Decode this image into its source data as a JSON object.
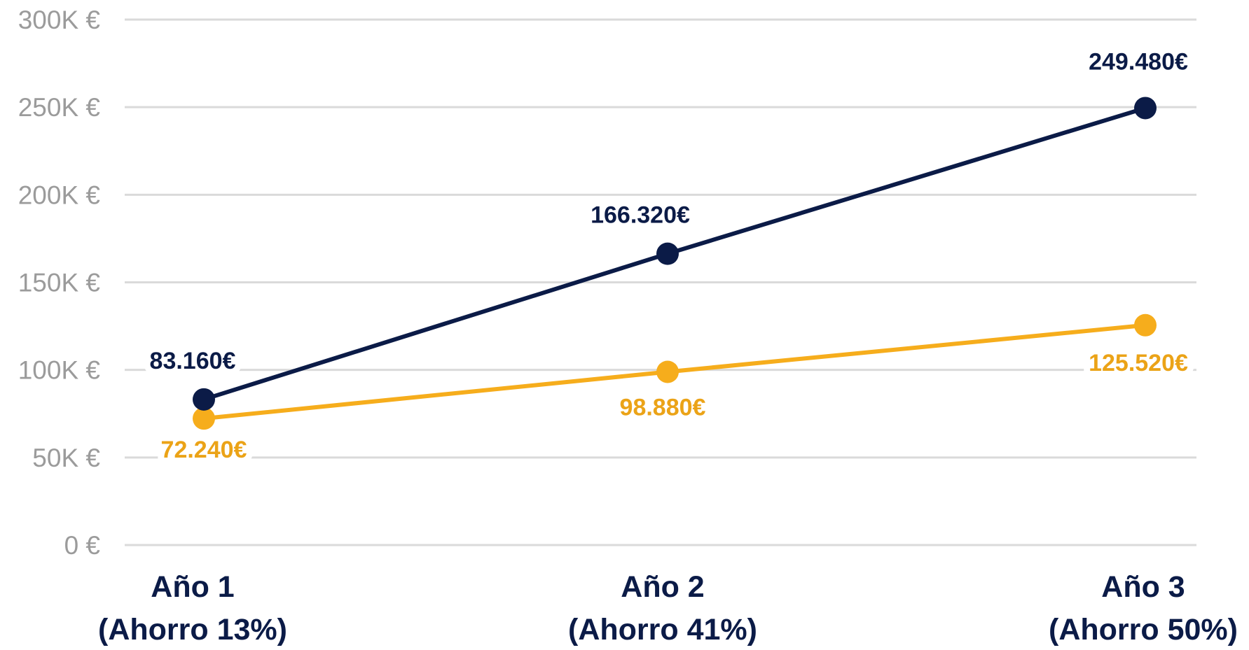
{
  "chart_data": {
    "type": "line",
    "categories": [
      [
        "Año 1",
        "(Ahorro 13%)"
      ],
      [
        "Año 2",
        "(Ahorro 41%)"
      ],
      [
        "Año 3",
        "(Ahorro 50%)"
      ]
    ],
    "ylim": [
      0,
      300000
    ],
    "yticks": [
      0,
      50000,
      100000,
      150000,
      200000,
      250000,
      300000
    ],
    "ytick_labels": [
      "0 €",
      "50K €",
      "100K €",
      "150K €",
      "200K €",
      "250K €",
      "300K €"
    ],
    "grid": true,
    "series": [
      {
        "color": "#0b1b47",
        "values": [
          83160,
          166320,
          249480
        ],
        "labels": [
          "83.160€",
          "166.320€",
          "249.480€"
        ],
        "label_position": "above"
      },
      {
        "color": "#f6ad1c",
        "label_color": "#eba317",
        "values": [
          72240,
          98880,
          125520
        ],
        "labels": [
          "72.240€",
          "98.880€",
          "125.520€"
        ],
        "label_position": "below"
      }
    ]
  }
}
